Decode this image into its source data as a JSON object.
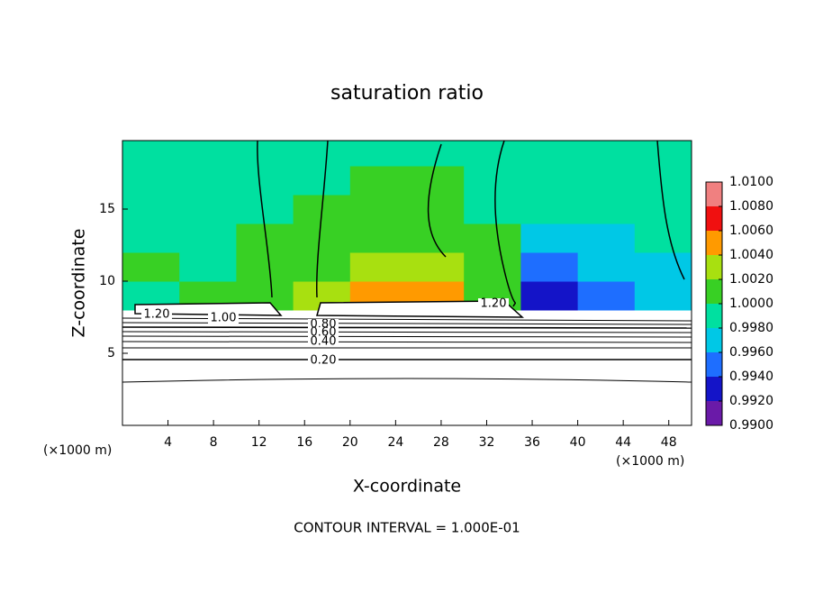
{
  "chart_data": {
    "type": "contour",
    "title": "saturation ratio",
    "x_label": "X-coordinate",
    "y_label": "Z-coordinate",
    "x_unit": "(×1000 m)",
    "y_unit": "(×1000 m)",
    "footer": "CONTOUR INTERVAL = 1.000E-01",
    "xlim": [
      0,
      50
    ],
    "ylim": [
      0,
      19.75
    ],
    "xticks": [
      4,
      8,
      12,
      16,
      20,
      24,
      28,
      32,
      36,
      40,
      44,
      48
    ],
    "yticks": [
      5,
      10,
      15
    ],
    "x": [
      2.5,
      7.5,
      12.5,
      17.5,
      22.5,
      27.5,
      32.5,
      37.5,
      42.5,
      47.5
    ],
    "y": [
      1,
      3,
      5,
      7,
      9,
      11,
      13,
      15,
      17,
      19
    ],
    "z": [
      [
        0.1,
        0.1,
        0.1,
        0.1,
        0.1,
        0.1,
        0.1,
        0.1,
        0.1,
        0.1
      ],
      [
        0.15,
        0.15,
        0.15,
        0.15,
        0.15,
        0.15,
        0.15,
        0.15,
        0.15,
        0.15
      ],
      [
        0.25,
        0.25,
        0.25,
        0.25,
        0.25,
        0.25,
        0.25,
        0.25,
        0.25,
        0.25
      ],
      [
        0.6,
        0.6,
        0.6,
        0.6,
        0.6,
        0.6,
        0.6,
        0.6,
        0.6,
        0.6
      ],
      [
        1.0,
        1.0005,
        1.0005,
        1.003,
        1.005,
        1.005,
        1.002,
        0.9935,
        0.9955,
        0.998
      ],
      [
        1.0005,
        1.0,
        1.0005,
        1.002,
        1.003,
        1.003,
        1.001,
        0.996,
        0.997,
        0.998
      ],
      [
        1.0,
        1.0,
        1.0005,
        1.001,
        1.002,
        1.0015,
        1.0005,
        0.998,
        0.998,
        0.999
      ],
      [
        1.0,
        1.0,
        1.0,
        1.0005,
        1.0015,
        1.001,
        1.0,
        0.999,
        0.999,
        0.9995
      ],
      [
        1.0,
        1.0,
        1.0,
        1.0,
        1.0008,
        1.0005,
        1.0,
        0.9995,
        0.9995,
        1.0
      ],
      [
        1.0,
        1.0,
        1.0,
        1.0,
        1.0,
        1.0,
        1.0,
        1.0,
        1.0,
        1.0
      ]
    ],
    "contour_labels": [
      "1.20",
      "1.00",
      "0.80",
      "0.60",
      "0.40",
      "0.20",
      "1.20"
    ],
    "colorbar": {
      "levels": [
        {
          "value": 0.99,
          "label": "0.9900"
        },
        {
          "value": 0.992,
          "label": "0.9920"
        },
        {
          "value": 0.994,
          "label": "0.9940"
        },
        {
          "value": 0.996,
          "label": "0.9960"
        },
        {
          "value": 0.998,
          "label": "0.9980"
        },
        {
          "value": 1.0,
          "label": "1.0000"
        },
        {
          "value": 1.002,
          "label": "1.0020"
        },
        {
          "value": 1.004,
          "label": "1.0040"
        },
        {
          "value": 1.006,
          "label": "1.0060"
        },
        {
          "value": 1.008,
          "label": "1.0080"
        },
        {
          "value": 1.01,
          "label": "1.0100"
        }
      ],
      "colors": [
        "#6a1aa8",
        "#1414c8",
        "#1e6eff",
        "#00c8e6",
        "#00e0a0",
        "#38d024",
        "#a8e010",
        "#ff9a00",
        "#f01010",
        "#f08080"
      ]
    }
  }
}
